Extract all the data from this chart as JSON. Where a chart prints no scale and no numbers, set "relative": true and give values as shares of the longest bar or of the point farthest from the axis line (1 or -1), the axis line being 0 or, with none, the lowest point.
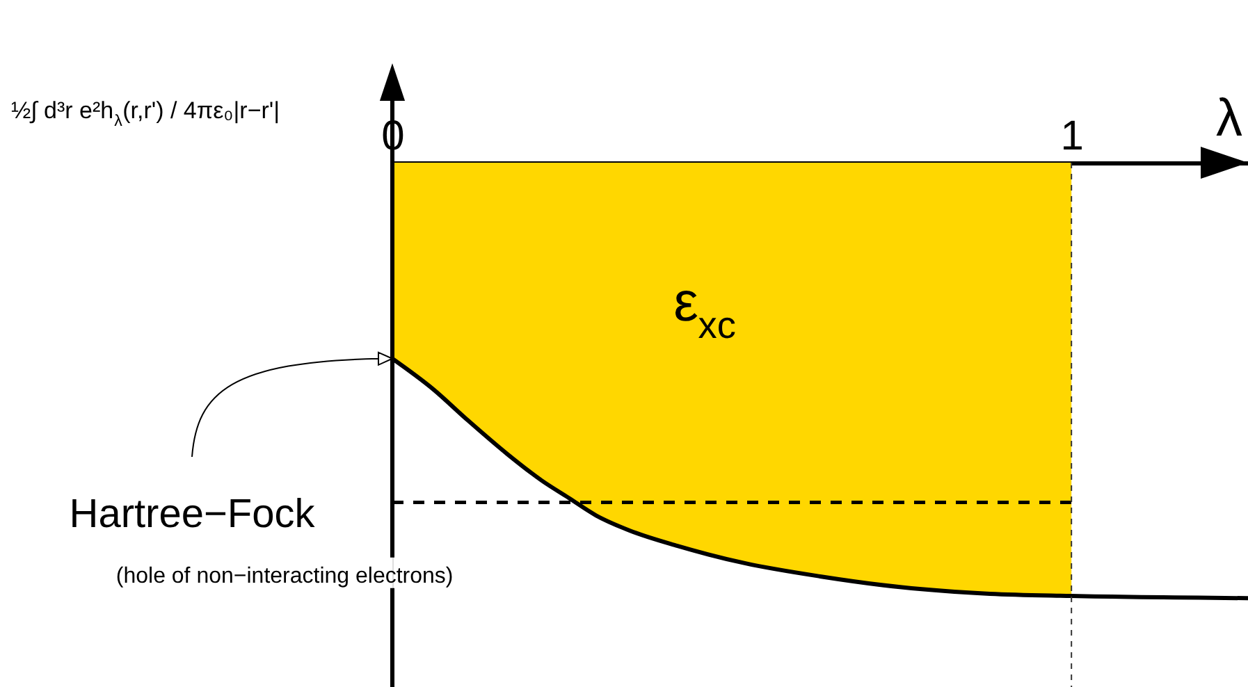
{
  "chart_data": {
    "type": "line",
    "relative": true,
    "ylabel": "½∫ d³r e²h$_{λ}$(r,r') / 4πε₀|r−r'|",
    "xlabel": "λ",
    "xlim": [
      0,
      1.26
    ],
    "xticks": [
      0,
      1
    ],
    "series": [
      {
        "type": "area",
        "color": "#ffd700",
        "x": [
          0,
          0.06,
          0.11,
          0.17,
          0.22,
          0.26,
          0.3,
          0.35,
          0.42,
          0.52,
          0.63,
          0.75,
          0.88,
          1
        ],
        "values": [
          -0.45,
          -0.52,
          -0.59,
          -0.67,
          -0.73,
          -0.77,
          -0.81,
          -0.845,
          -0.88,
          -0.92,
          -0.95,
          -0.975,
          -0.99,
          -0.995
        ]
      },
      {
        "color": "#000000",
        "x": [
          0,
          0.06,
          0.11,
          0.17,
          0.22,
          0.26,
          0.3,
          0.35,
          0.42,
          0.52,
          0.63,
          0.75,
          0.88,
          1,
          1.26
        ],
        "values": [
          -0.45,
          -0.52,
          -0.59,
          -0.67,
          -0.73,
          -0.77,
          -0.81,
          -0.845,
          -0.88,
          -0.92,
          -0.95,
          -0.975,
          -0.99,
          -0.995,
          -1.0
        ]
      },
      {
        "color": "#000000",
        "line_style": "dashed",
        "x": [
          0,
          1
        ],
        "values": [
          -0.78,
          -0.78
        ]
      }
    ],
    "ref_lines": [
      {
        "axis": "x",
        "value": 1,
        "line_style": "dashed",
        "color": "#333333"
      }
    ],
    "annotations": [
      "ε$_{xc}$",
      "Hartree−Fock",
      "(hole of non−interacting electrons)"
    ]
  }
}
